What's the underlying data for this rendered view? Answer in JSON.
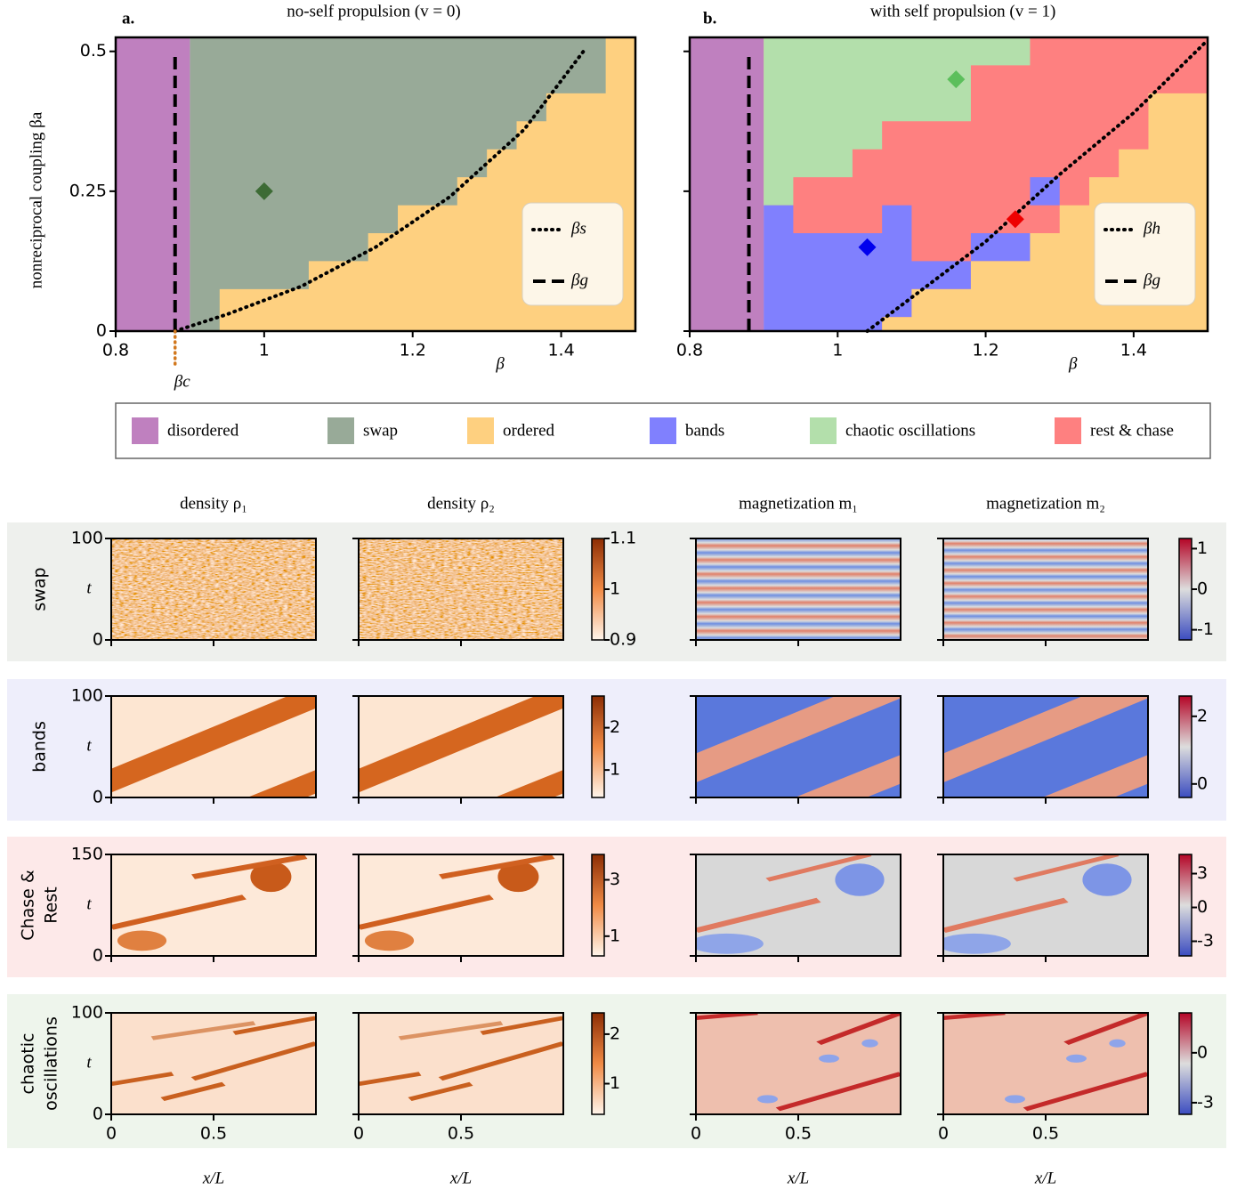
{
  "chart_data": [
    {
      "type": "phase",
      "label": "a.",
      "title": "no-self propulsion (v = 0)",
      "xlabel": "β",
      "ylabel": "nonreciprocal coupling βa",
      "xlim": [
        0.8,
        1.5
      ],
      "ylim": [
        0,
        0.525
      ],
      "xticks": [
        0.8,
        1,
        1.2,
        1.4
      ],
      "yticks": [
        0,
        0.25,
        0.5
      ],
      "ytick_labels": true,
      "regions": [
        {
          "color": "#bf80bf",
          "x": [
            0.8,
            0.8,
            0.9,
            0.9
          ],
          "y": [
            0,
            0.525,
            0.525,
            0
          ]
        },
        {
          "color": "#98aa98",
          "x": [
            0.9,
            0.9,
            1.5,
            1.5
          ],
          "y": [
            0,
            0.525,
            0.525,
            0
          ]
        },
        {
          "color": "#fed080",
          "x": [
            0.94,
            0.94,
            1.06,
            1.06,
            1.14,
            1.14,
            1.18,
            1.18,
            1.26,
            1.26,
            1.3,
            1.3,
            1.34,
            1.34,
            1.38,
            1.38,
            1.46,
            1.46,
            1.5,
            1.5
          ],
          "y": [
            0,
            0.075,
            0.075,
            0.125,
            0.125,
            0.175,
            0.175,
            0.225,
            0.225,
            0.275,
            0.275,
            0.325,
            0.325,
            0.375,
            0.375,
            0.425,
            0.425,
            0.525,
            0.525,
            0
          ]
        }
      ],
      "lines": [
        {
          "name": "βs",
          "style": "dotted",
          "x": [
            0.88,
            0.95,
            1.05,
            1.15,
            1.25,
            1.35,
            1.43
          ],
          "y": [
            0,
            0.03,
            0.08,
            0.15,
            0.24,
            0.36,
            0.5
          ]
        },
        {
          "name": "βg",
          "style": "dashed",
          "x": [
            0.88,
            0.88
          ],
          "y": [
            0,
            0.5
          ]
        }
      ],
      "markers": [
        {
          "x": 1,
          "y": 0.25,
          "color": "#3d6b35"
        }
      ],
      "critical": {
        "label": "βc",
        "x": 0.88,
        "color": "#d2781e"
      }
    },
    {
      "type": "phase",
      "label": "b.",
      "title": "with self propulsion (v = 1)",
      "xlabel": "β",
      "xlim": [
        0.8,
        1.5
      ],
      "ylim": [
        0,
        0.525
      ],
      "xticks": [
        0.8,
        1,
        1.2,
        1.4
      ],
      "yticks": [
        0,
        0.25,
        0.5
      ],
      "ytick_labels": false,
      "regions": [
        {
          "color": "#bf80bf",
          "x": [
            0.8,
            0.8,
            0.9,
            0.9
          ],
          "y": [
            0,
            0.525,
            0.525,
            0
          ]
        },
        {
          "color": "#fe8080",
          "x": [
            0.9,
            0.9,
            1.5,
            1.5
          ],
          "y": [
            0,
            0.525,
            0.525,
            0
          ]
        },
        {
          "color": "#b3dfab",
          "x": [
            0.9,
            0.9,
            1.26,
            1.26,
            1.18,
            1.18,
            1.06,
            1.06,
            1.02,
            1.02,
            0.94,
            0.94
          ],
          "y": [
            0.225,
            0.525,
            0.525,
            0.475,
            0.475,
            0.375,
            0.375,
            0.325,
            0.325,
            0.275,
            0.275,
            0.225
          ]
        },
        {
          "color": "#8080fe",
          "x": [
            0.9,
            0.9,
            0.94,
            0.94,
            1.06,
            1.06,
            1.1,
            1.1,
            1.18,
            1.18,
            1.1,
            1.1,
            1.06,
            1.06
          ],
          "y": [
            0,
            0.225,
            0.225,
            0.175,
            0.175,
            0.225,
            0.225,
            0.125,
            0.125,
            0.075,
            0.075,
            0.025,
            0.025,
            0
          ]
        },
        {
          "color": "#8080fe",
          "x": [
            1.18,
            1.18,
            1.26,
            1.26
          ],
          "y": [
            0.125,
            0.175,
            0.175,
            0.125
          ]
        },
        {
          "color": "#8080fe",
          "x": [
            1.26,
            1.26,
            1.3,
            1.3
          ],
          "y": [
            0.225,
            0.275,
            0.275,
            0.225
          ]
        },
        {
          "color": "#fed080",
          "x": [
            1.06,
            1.06,
            1.1,
            1.1,
            1.18,
            1.18,
            1.26,
            1.26,
            1.3,
            1.3,
            1.34,
            1.34,
            1.38,
            1.38,
            1.42,
            1.42,
            1.5,
            1.5
          ],
          "y": [
            0,
            0.025,
            0.025,
            0.075,
            0.075,
            0.125,
            0.125,
            0.175,
            0.175,
            0.225,
            0.225,
            0.275,
            0.275,
            0.325,
            0.325,
            0.425,
            0.425,
            0
          ]
        }
      ],
      "lines": [
        {
          "name": "βh",
          "style": "dotted",
          "x": [
            1.04,
            1.1,
            1.2,
            1.3,
            1.4,
            1.5
          ],
          "y": [
            0,
            0.06,
            0.16,
            0.28,
            0.39,
            0.52
          ]
        },
        {
          "name": "βg",
          "style": "dashed",
          "x": [
            0.88,
            0.88
          ],
          "y": [
            0,
            0.5
          ]
        }
      ],
      "markers": [
        {
          "x": 1.16,
          "y": 0.45,
          "color": "#5cbf5c"
        },
        {
          "x": 1.04,
          "y": 0.15,
          "color": "#0000ee"
        },
        {
          "x": 1.24,
          "y": 0.2,
          "color": "#ee0000"
        }
      ]
    },
    {
      "type": "heatmap-grid",
      "columns": [
        "density ρ₁",
        "density ρ₂",
        "magnetization m₁",
        "magnetization m₂"
      ],
      "xlabel": "x/L",
      "xlim": [
        0,
        1
      ],
      "xticks": [
        0,
        0.5
      ],
      "ylabel": "t",
      "rows": [
        {
          "label": [
            "swap"
          ],
          "color": "#3d6b35",
          "ylim": [
            0,
            100
          ],
          "yticks": [
            0,
            100
          ],
          "colorbars": [
            {
              "lim": [
                0.9,
                1.1
              ],
              "ticks": [
                0.9,
                1,
                1.1
              ]
            },
            {
              "lim": [
                -1.25,
                1.25
              ],
              "ticks": [
                -1,
                0,
                1
              ]
            }
          ]
        },
        {
          "label": [
            "bands"
          ],
          "color": "#1010e0",
          "ylim": [
            0,
            100
          ],
          "yticks": [
            0,
            100
          ],
          "colorbars": [
            {
              "lim": [
                0.35,
                2.75
              ],
              "ticks": [
                1,
                2
              ]
            },
            {
              "lim": [
                -0.4,
                2.6
              ],
              "ticks": [
                0,
                2
              ]
            }
          ]
        },
        {
          "label": [
            "Chase &",
            "Rest"
          ],
          "color": "#ee1010",
          "ylim": [
            0,
            150
          ],
          "yticks": [
            0,
            150
          ],
          "colorbars": [
            {
              "lim": [
                0.3,
                3.9
              ],
              "ticks": [
                1,
                3
              ]
            },
            {
              "lim": [
                -4.3,
                4.7
              ],
              "ticks": [
                -3,
                0,
                3
              ]
            }
          ]
        },
        {
          "label": [
            "chaotic",
            "oscillations"
          ],
          "color": "#6cc16c",
          "ylim": [
            0,
            100
          ],
          "yticks": [
            0,
            100
          ],
          "colorbars": [
            {
              "lim": [
                0.38,
                2.43
              ],
              "ticks": [
                1,
                2
              ]
            },
            {
              "lim": [
                -3.7,
                2.4
              ],
              "ticks": [
                -3,
                0
              ]
            }
          ]
        }
      ]
    }
  ],
  "phase_legend": {
    "entries": [
      {
        "name": "disordered",
        "color": "#bf80bf"
      },
      {
        "name": "swap",
        "color": "#98aa98"
      },
      {
        "name": "ordered",
        "color": "#fed080"
      },
      {
        "name": "bands",
        "color": "#8080fe"
      },
      {
        "name": "chaotic oscillations",
        "color": "#b3dfab"
      },
      {
        "name": "rest & chase",
        "color": "#fe8080"
      }
    ]
  }
}
